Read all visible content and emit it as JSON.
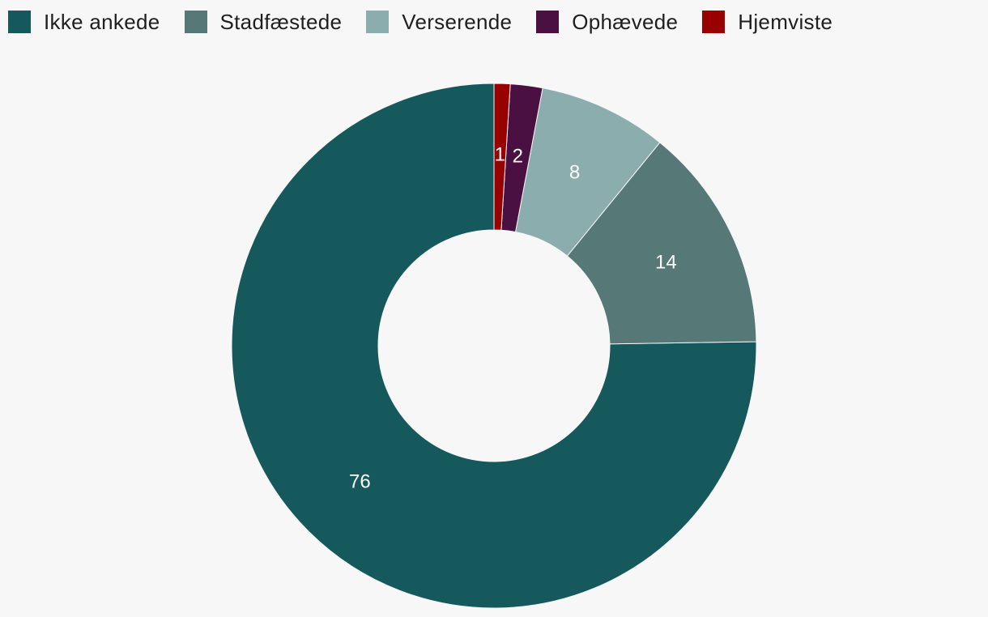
{
  "chart_data": {
    "type": "pie",
    "variant": "donut",
    "title": "",
    "legend_position": "top-left",
    "categories": [
      "Ikke ankede",
      "Stadfæstede",
      "Verserende",
      "Ophævede",
      "Hjemviste"
    ],
    "values": [
      76,
      14,
      8,
      2,
      1
    ],
    "value_labels": [
      "76",
      "14",
      "8",
      "2",
      "1"
    ],
    "colors": [
      "#15595c",
      "#567877",
      "#8cadad",
      "#4a1042",
      "#990000"
    ]
  }
}
